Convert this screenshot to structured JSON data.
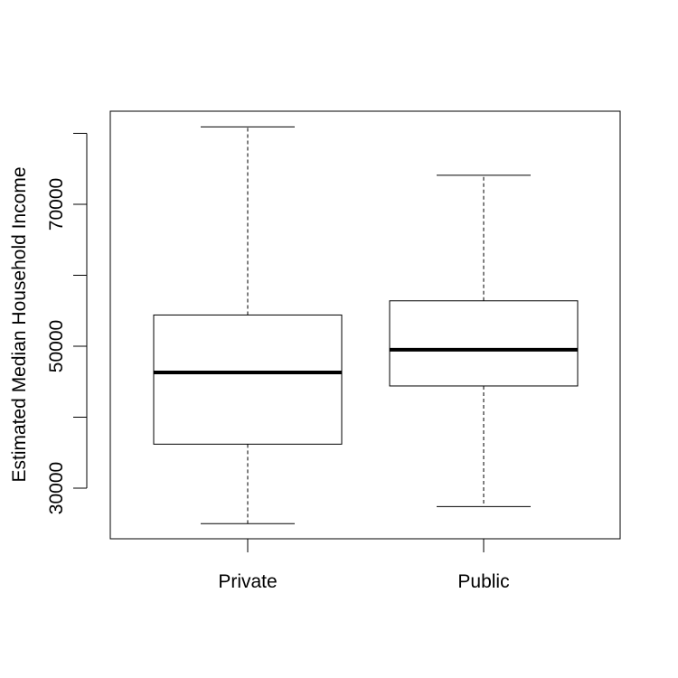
{
  "chart_data": {
    "type": "boxplot",
    "title": "",
    "xlabel": "",
    "ylabel": "Estimated Median Household Income",
    "categories": [
      "Private",
      "Public"
    ],
    "boxes": [
      {
        "category": "Private",
        "whisker_low": 25000,
        "q1": 36200,
        "median": 46300,
        "q3": 54400,
        "whisker_high": 80900
      },
      {
        "category": "Public",
        "whisker_low": 27400,
        "q1": 44400,
        "median": 49500,
        "q3": 56400,
        "whisker_high": 74100
      }
    ],
    "ylim": [
      23000,
      83000
    ],
    "yticks": [
      30000,
      40000,
      50000,
      60000,
      70000,
      80000
    ],
    "ytick_labels": [
      "30000",
      "",
      "50000",
      "",
      "70000",
      ""
    ],
    "grid": false,
    "legend": "none"
  }
}
